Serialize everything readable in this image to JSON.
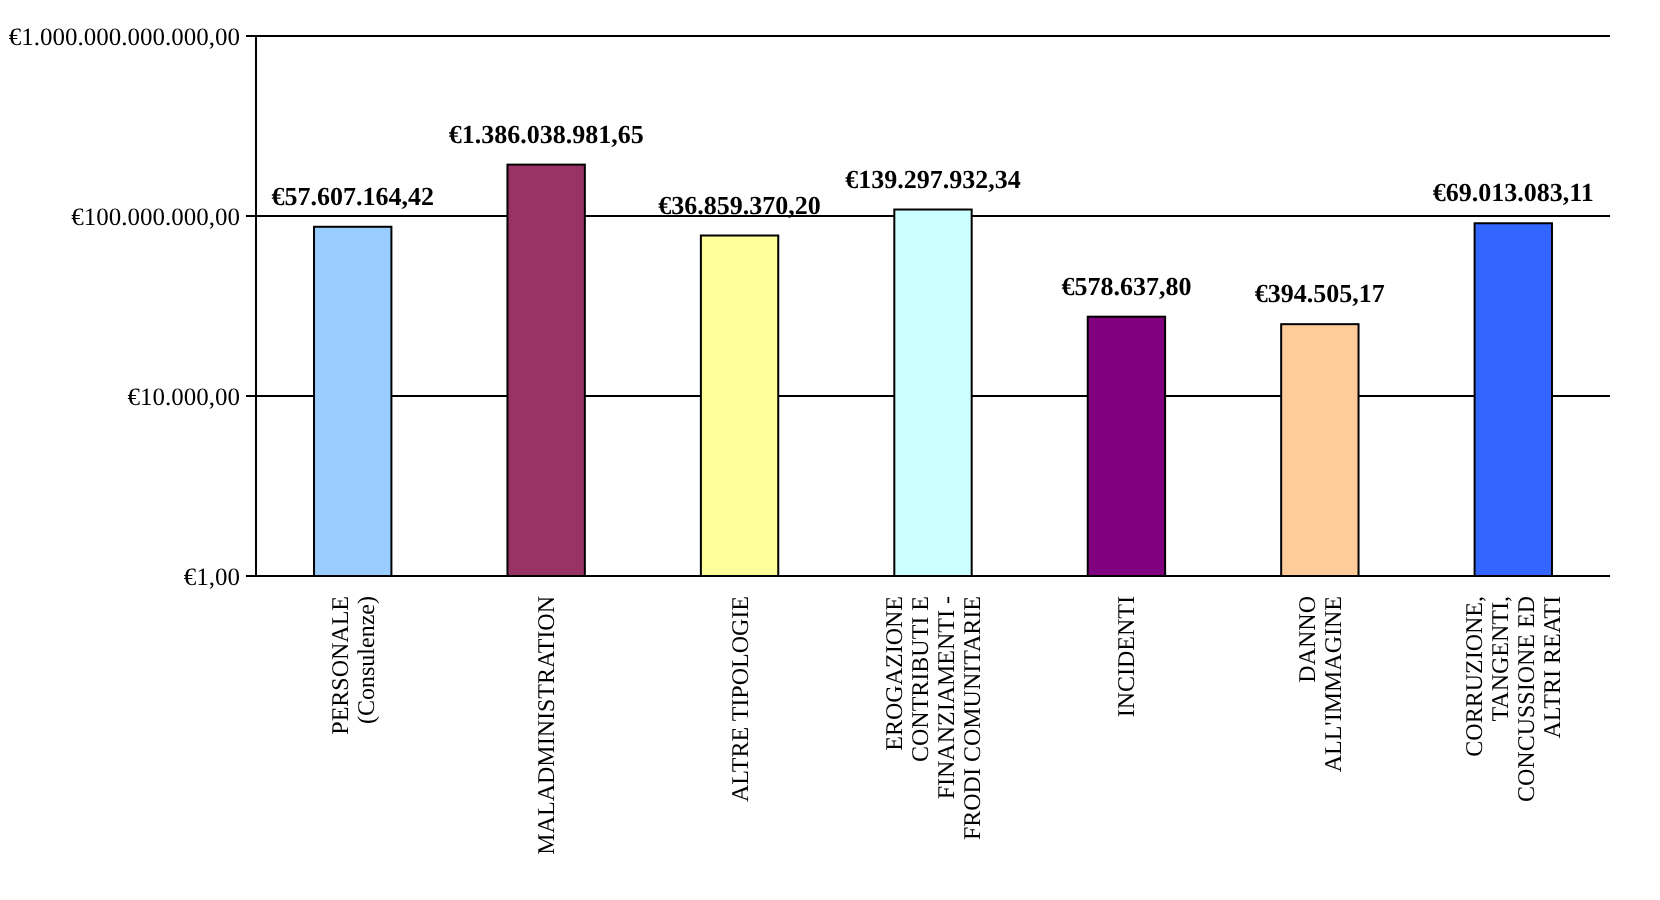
{
  "chart_data": {
    "type": "bar",
    "log": true,
    "grid": "y",
    "categories": [
      "PERSONALE (Consulenze)",
      "MALADMINISTRATION",
      "ALTRE TIPOLOGIE",
      "EROGAZIONE CONTRIBUTI E FINANZIAMENTI - FRODI COMUNITARIE",
      "INCIDENTI",
      "DANNO ALL'IMMAGINE",
      "CORRUZIONE, TANGENTI, CONCUSSIONE ED ALTRI REATI"
    ],
    "values": [
      57607164.42,
      1386038981.65,
      36859370.2,
      139297932.34,
      578637.8,
      394505.17,
      69013083.11
    ],
    "colors": [
      "#99ccff",
      "#993366",
      "#ffff99",
      "#ccffff",
      "#800080",
      "#ffcc99",
      "#3366ff"
    ],
    "value_labels": [
      "€57.607.164,42",
      "€1.386.038.981,65",
      "€36.859.370,20",
      "€139.297.932,34",
      "€578.637,80",
      "€394.505,17",
      "€69.013.083,11"
    ],
    "ylim": [
      1,
      1000000000000
    ],
    "yticks": [
      {
        "value": 1,
        "label": "€1,00"
      },
      {
        "value": 10000,
        "label": "€10.000,00"
      },
      {
        "value": 100000000,
        "label": "€100.000.000,00"
      },
      {
        "value": 1000000000000,
        "label": "€1.000.000.000.000,00"
      }
    ]
  }
}
